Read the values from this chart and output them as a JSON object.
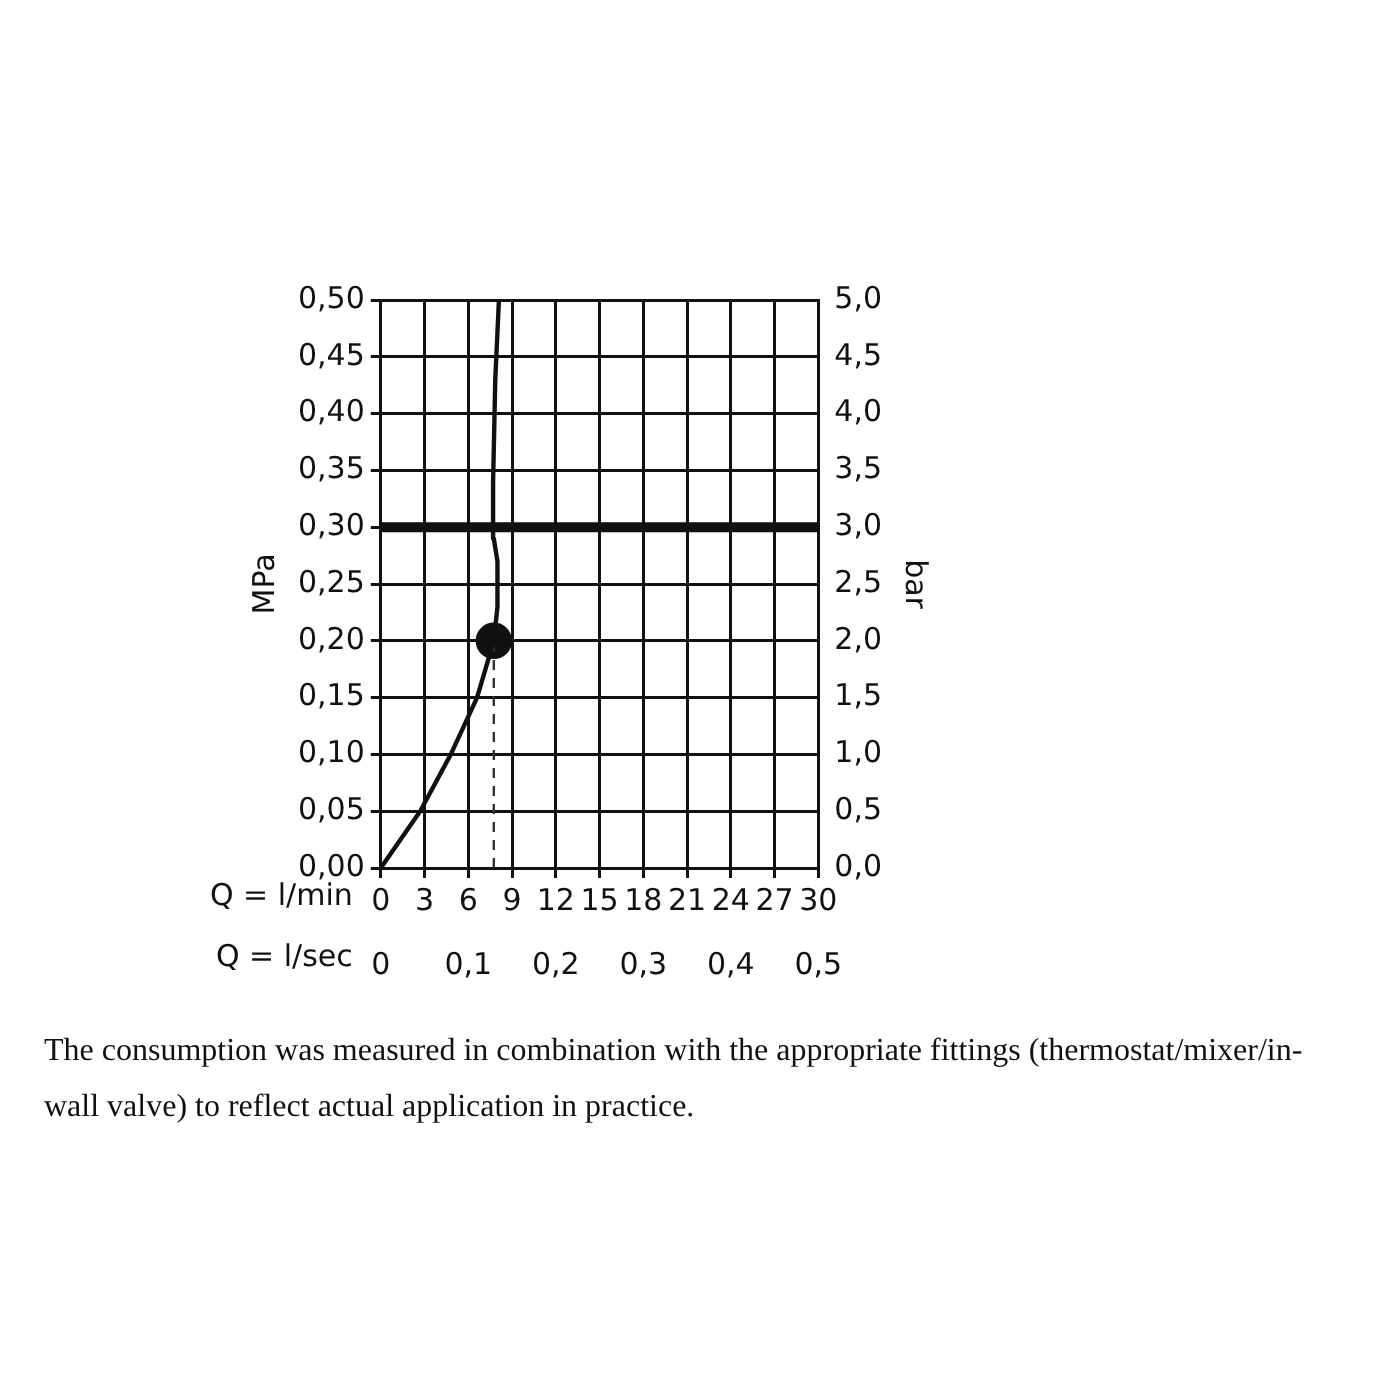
{
  "chart_data": {
    "type": "line",
    "xlabel": "Q = l/min",
    "x2label": "Q = l/sec",
    "ylabel": "MPa",
    "y2label": "bar",
    "xlim": [
      0,
      30
    ],
    "xticks": [
      0,
      3,
      6,
      9,
      12,
      15,
      18,
      21,
      24,
      27,
      30
    ],
    "x2lim": [
      0,
      0.5
    ],
    "x2ticks": [
      {
        "value": 0,
        "label": "0"
      },
      {
        "value": 0.1,
        "label": "0,1"
      },
      {
        "value": 0.2,
        "label": "0,2"
      },
      {
        "value": 0.3,
        "label": "0,3"
      },
      {
        "value": 0.4,
        "label": "0,4"
      },
      {
        "value": 0.5,
        "label": "0,5"
      }
    ],
    "ylim": [
      0,
      0.5
    ],
    "yticks": [
      {
        "value": 0,
        "label": "0,00"
      },
      {
        "value": 0.05,
        "label": "0,05"
      },
      {
        "value": 0.1,
        "label": "0,10"
      },
      {
        "value": 0.15,
        "label": "0,15"
      },
      {
        "value": 0.2,
        "label": "0,20"
      },
      {
        "value": 0.25,
        "label": "0,25"
      },
      {
        "value": 0.3,
        "label": "0,30"
      },
      {
        "value": 0.35,
        "label": "0,35"
      },
      {
        "value": 0.4,
        "label": "0,40"
      },
      {
        "value": 0.45,
        "label": "0,45"
      },
      {
        "value": 0.5,
        "label": "0,50"
      }
    ],
    "y2lim": [
      0,
      5
    ],
    "y2ticks": [
      {
        "value": 0,
        "label": "0,0"
      },
      {
        "value": 0.5,
        "label": "0,5"
      },
      {
        "value": 1,
        "label": "1,0"
      },
      {
        "value": 1.5,
        "label": "1,5"
      },
      {
        "value": 2,
        "label": "2,0"
      },
      {
        "value": 2.5,
        "label": "2,5"
      },
      {
        "value": 3,
        "label": "3,0"
      },
      {
        "value": 3.5,
        "label": "3,5"
      },
      {
        "value": 4,
        "label": "4,0"
      },
      {
        "value": 4.5,
        "label": "4,5"
      },
      {
        "value": 5,
        "label": "5,0"
      }
    ],
    "grid": true,
    "legend": false,
    "ref_lines": [
      {
        "axis": "y",
        "value": 0.3,
        "color": "#111111"
      }
    ],
    "series": [
      {
        "type": "line",
        "color": "#111111",
        "marker": "none",
        "line_style": "solid",
        "x": [
          0,
          2.7,
          4.8,
          6.6,
          7.75,
          8.0,
          8.0,
          7.75,
          7.7,
          7.85,
          8.1
        ],
        "values": [
          0,
          0.05,
          0.1,
          0.15,
          0.2,
          0.23,
          0.27,
          0.29,
          0.34,
          0.43,
          0.5
        ]
      },
      {
        "type": "line",
        "color": "#333333",
        "marker": "none",
        "line_style": "dashed",
        "x": [
          7.75,
          7.75
        ],
        "values": [
          0,
          0.2
        ]
      },
      {
        "type": "scatter",
        "color": "#111111",
        "marker": "circle",
        "x": [
          7.75
        ],
        "values": [
          0.2
        ]
      }
    ],
    "annotations": [
      "The consumption was measured in combination with the appropriate fittings (thermostat/mixer/in-wall valve) to reflect actual application in practice."
    ]
  }
}
